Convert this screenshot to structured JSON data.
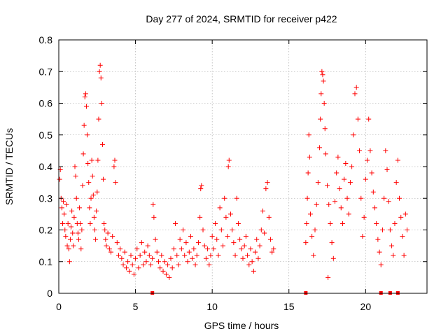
{
  "chart_data": {
    "type": "scatter",
    "title": "Day 277 of 2024, SRMTID for receiver p422",
    "xlabel": "GPS time / hours",
    "ylabel": "SRMTID / TECUs",
    "xlim": [
      0,
      24
    ],
    "ylim": [
      0,
      0.8
    ],
    "grid": true,
    "marker": "plus",
    "color": "#ff0000",
    "x_ticks": [
      0,
      5,
      10,
      15,
      20
    ],
    "x_tick_labels": [
      "0",
      "5",
      "10",
      "15",
      "20"
    ],
    "y_ticks": [
      0,
      0.1,
      0.2,
      0.3,
      0.4,
      0.5,
      0.6,
      0.7,
      0.8
    ],
    "y_tick_labels": [
      "0",
      "0.1",
      "0.2",
      "0.3",
      "0.4",
      "0.5",
      "0.6",
      "0.7",
      "0.8"
    ],
    "series": [
      {
        "name": "p422",
        "note": "representative sample of the plotted SRMTID values",
        "points": [
          [
            0.05,
            0.36
          ],
          [
            0.1,
            0.39
          ],
          [
            0.15,
            0.3
          ],
          [
            0.2,
            0.27
          ],
          [
            0.25,
            0.22
          ],
          [
            0.3,
            0.29
          ],
          [
            0.35,
            0.25
          ],
          [
            0.4,
            0.2
          ],
          [
            0.45,
            0.18
          ],
          [
            0.5,
            0.28
          ],
          [
            0.55,
            0.15
          ],
          [
            0.6,
            0.22
          ],
          [
            0.65,
            0.14
          ],
          [
            0.7,
            0.1
          ],
          [
            0.75,
            0.17
          ],
          [
            0.8,
            0.21
          ],
          [
            0.85,
            0.26
          ],
          [
            0.9,
            0.19
          ],
          [
            0.95,
            0.15
          ],
          [
            1.0,
            0.24
          ],
          [
            1.05,
            0.4
          ],
          [
            1.1,
            0.37
          ],
          [
            1.15,
            0.3
          ],
          [
            1.2,
            0.22
          ],
          [
            1.25,
            0.19
          ],
          [
            1.3,
            0.17
          ],
          [
            1.35,
            0.27
          ],
          [
            1.4,
            0.22
          ],
          [
            1.45,
            0.14
          ],
          [
            1.5,
            0.2
          ],
          [
            1.55,
            0.34
          ],
          [
            1.6,
            0.44
          ],
          [
            1.65,
            0.53
          ],
          [
            1.7,
            0.62
          ],
          [
            1.75,
            0.63
          ],
          [
            1.8,
            0.59
          ],
          [
            1.85,
            0.5
          ],
          [
            1.9,
            0.41
          ],
          [
            1.95,
            0.35
          ],
          [
            2.0,
            0.27
          ],
          [
            2.05,
            0.22
          ],
          [
            2.1,
            0.3
          ],
          [
            2.15,
            0.42
          ],
          [
            2.2,
            0.37
          ],
          [
            2.25,
            0.31
          ],
          [
            2.3,
            0.24
          ],
          [
            2.35,
            0.2
          ],
          [
            2.4,
            0.17
          ],
          [
            2.45,
            0.26
          ],
          [
            2.5,
            0.32
          ],
          [
            2.55,
            0.42
          ],
          [
            2.6,
            0.55
          ],
          [
            2.65,
            0.7
          ],
          [
            2.7,
            0.72
          ],
          [
            2.75,
            0.68
          ],
          [
            2.8,
            0.6
          ],
          [
            2.85,
            0.47
          ],
          [
            2.9,
            0.36
          ],
          [
            2.95,
            0.22
          ],
          [
            3.0,
            0.2
          ],
          [
            3.05,
            0.17
          ],
          [
            3.1,
            0.15
          ],
          [
            3.2,
            0.19
          ],
          [
            3.3,
            0.14
          ],
          [
            3.4,
            0.13
          ],
          [
            3.5,
            0.18
          ],
          [
            3.6,
            0.4
          ],
          [
            3.65,
            0.42
          ],
          [
            3.7,
            0.35
          ],
          [
            3.8,
            0.16
          ],
          [
            3.9,
            0.12
          ],
          [
            4.0,
            0.14
          ],
          [
            4.1,
            0.11
          ],
          [
            4.2,
            0.09
          ],
          [
            4.3,
            0.13
          ],
          [
            4.4,
            0.08
          ],
          [
            4.5,
            0.1
          ],
          [
            4.6,
            0.07
          ],
          [
            4.7,
            0.12
          ],
          [
            4.8,
            0.09
          ],
          [
            4.9,
            0.06
          ],
          [
            5.0,
            0.11
          ],
          [
            5.1,
            0.14
          ],
          [
            5.2,
            0.08
          ],
          [
            5.3,
            0.12
          ],
          [
            5.4,
            0.16
          ],
          [
            5.5,
            0.09
          ],
          [
            5.6,
            0.13
          ],
          [
            5.7,
            0.1
          ],
          [
            5.8,
            0.15
          ],
          [
            5.9,
            0.12
          ],
          [
            6.0,
            0.09
          ],
          [
            6.1,
            0.11
          ],
          [
            6.15,
            0.28
          ],
          [
            6.2,
            0.24
          ],
          [
            6.3,
            0.17
          ],
          [
            6.4,
            0.13
          ],
          [
            6.5,
            0.1
          ],
          [
            6.6,
            0.08
          ],
          [
            6.7,
            0.12
          ],
          [
            6.8,
            0.07
          ],
          [
            6.9,
            0.1
          ],
          [
            7.0,
            0.06
          ],
          [
            7.1,
            0.09
          ],
          [
            7.2,
            0.05
          ],
          [
            7.3,
            0.11
          ],
          [
            7.4,
            0.08
          ],
          [
            7.5,
            0.14
          ],
          [
            7.6,
            0.22
          ],
          [
            7.7,
            0.12
          ],
          [
            7.8,
            0.09
          ],
          [
            7.9,
            0.17
          ],
          [
            8.0,
            0.14
          ],
          [
            8.1,
            0.2
          ],
          [
            8.2,
            0.12
          ],
          [
            8.3,
            0.16
          ],
          [
            8.4,
            0.1
          ],
          [
            8.5,
            0.13
          ],
          [
            8.6,
            0.18
          ],
          [
            8.7,
            0.11
          ],
          [
            8.8,
            0.14
          ],
          [
            8.9,
            0.09
          ],
          [
            9.0,
            0.12
          ],
          [
            9.1,
            0.16
          ],
          [
            9.2,
            0.24
          ],
          [
            9.25,
            0.33
          ],
          [
            9.3,
            0.34
          ],
          [
            9.4,
            0.2
          ],
          [
            9.5,
            0.15
          ],
          [
            9.6,
            0.11
          ],
          [
            9.7,
            0.14
          ],
          [
            9.8,
            0.09
          ],
          [
            9.9,
            0.12
          ],
          [
            10.0,
            0.18
          ],
          [
            10.1,
            0.14
          ],
          [
            10.2,
            0.22
          ],
          [
            10.3,
            0.17
          ],
          [
            10.4,
            0.12
          ],
          [
            10.5,
            0.27
          ],
          [
            10.6,
            0.2
          ],
          [
            10.7,
            0.15
          ],
          [
            10.8,
            0.3
          ],
          [
            10.9,
            0.24
          ],
          [
            11.0,
            0.18
          ],
          [
            11.05,
            0.4
          ],
          [
            11.1,
            0.42
          ],
          [
            11.2,
            0.25
          ],
          [
            11.3,
            0.2
          ],
          [
            11.4,
            0.16
          ],
          [
            11.5,
            0.12
          ],
          [
            11.6,
            0.3
          ],
          [
            11.7,
            0.22
          ],
          [
            11.8,
            0.17
          ],
          [
            11.9,
            0.14
          ],
          [
            12.0,
            0.11
          ],
          [
            12.1,
            0.15
          ],
          [
            12.2,
            0.18
          ],
          [
            12.3,
            0.12
          ],
          [
            12.4,
            0.09
          ],
          [
            12.5,
            0.14
          ],
          [
            12.6,
            0.1
          ],
          [
            12.7,
            0.07
          ],
          [
            12.8,
            0.13
          ],
          [
            12.9,
            0.17
          ],
          [
            13.0,
            0.11
          ],
          [
            13.1,
            0.15
          ],
          [
            13.2,
            0.2
          ],
          [
            13.3,
            0.26
          ],
          [
            13.4,
            0.19
          ],
          [
            13.5,
            0.33
          ],
          [
            13.6,
            0.35
          ],
          [
            13.7,
            0.24
          ],
          [
            13.8,
            0.17
          ],
          [
            13.9,
            0.13
          ],
          [
            14.0,
            0.14
          ],
          [
            16.1,
            0.16
          ],
          [
            16.15,
            0.22
          ],
          [
            16.2,
            0.3
          ],
          [
            16.25,
            0.38
          ],
          [
            16.3,
            0.5
          ],
          [
            16.35,
            0.43
          ],
          [
            16.4,
            0.25
          ],
          [
            16.5,
            0.18
          ],
          [
            16.6,
            0.12
          ],
          [
            16.7,
            0.2
          ],
          [
            16.8,
            0.28
          ],
          [
            16.9,
            0.35
          ],
          [
            17.0,
            0.46
          ],
          [
            17.05,
            0.55
          ],
          [
            17.1,
            0.63
          ],
          [
            17.15,
            0.7
          ],
          [
            17.2,
            0.69
          ],
          [
            17.25,
            0.67
          ],
          [
            17.3,
            0.6
          ],
          [
            17.35,
            0.52
          ],
          [
            17.4,
            0.44
          ],
          [
            17.5,
            0.34
          ],
          [
            17.55,
            0.05
          ],
          [
            17.6,
            0.28
          ],
          [
            17.7,
            0.22
          ],
          [
            17.8,
            0.16
          ],
          [
            17.9,
            0.11
          ],
          [
            18.0,
            0.29
          ],
          [
            18.1,
            0.38
          ],
          [
            18.2,
            0.43
          ],
          [
            18.3,
            0.33
          ],
          [
            18.4,
            0.27
          ],
          [
            18.5,
            0.22
          ],
          [
            18.6,
            0.36
          ],
          [
            18.7,
            0.41
          ],
          [
            18.8,
            0.3
          ],
          [
            18.9,
            0.25
          ],
          [
            19.0,
            0.35
          ],
          [
            19.1,
            0.4
          ],
          [
            19.2,
            0.5
          ],
          [
            19.3,
            0.63
          ],
          [
            19.4,
            0.65
          ],
          [
            19.5,
            0.55
          ],
          [
            19.6,
            0.45
          ],
          [
            19.7,
            0.3
          ],
          [
            19.8,
            0.18
          ],
          [
            19.9,
            0.24
          ],
          [
            20.0,
            0.36
          ],
          [
            20.1,
            0.42
          ],
          [
            20.2,
            0.55
          ],
          [
            20.3,
            0.45
          ],
          [
            20.4,
            0.38
          ],
          [
            20.5,
            0.32
          ],
          [
            20.6,
            0.27
          ],
          [
            20.7,
            0.22
          ],
          [
            20.8,
            0.17
          ],
          [
            20.9,
            0.13
          ],
          [
            21.0,
            0.09
          ],
          [
            21.1,
            0.2
          ],
          [
            21.2,
            0.3
          ],
          [
            21.3,
            0.45
          ],
          [
            21.4,
            0.39
          ],
          [
            21.5,
            0.29
          ],
          [
            21.6,
            0.2
          ],
          [
            21.7,
            0.15
          ],
          [
            21.8,
            0.12
          ],
          [
            21.9,
            0.22
          ],
          [
            22.0,
            0.35
          ],
          [
            22.1,
            0.42
          ],
          [
            22.2,
            0.3
          ],
          [
            22.3,
            0.24
          ],
          [
            22.4,
            0.18
          ],
          [
            22.5,
            0.12
          ],
          [
            22.6,
            0.25
          ],
          [
            22.7,
            0.2
          ]
        ]
      }
    ],
    "baseline_markers_x": [
      6.1,
      16.1,
      21.0,
      21.6,
      22.1
    ]
  }
}
